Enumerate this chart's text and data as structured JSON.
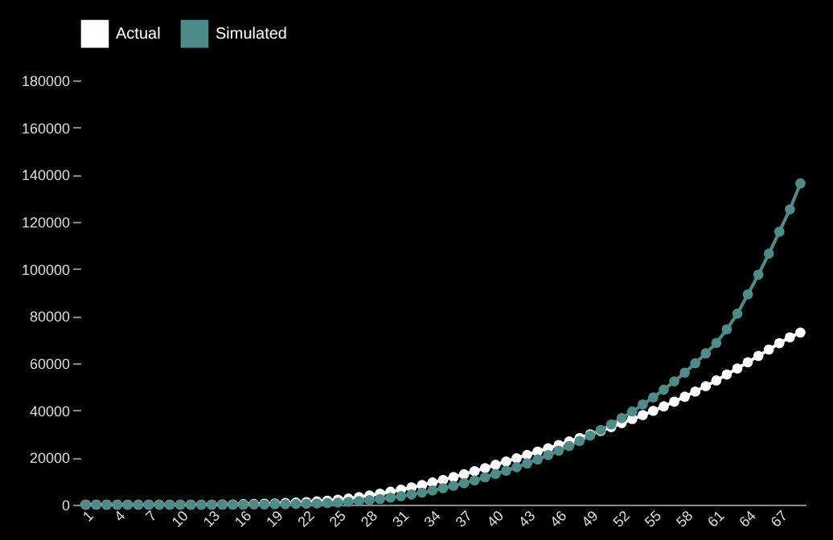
{
  "chart_data": {
    "type": "line",
    "categories": [
      "1",
      null,
      null,
      "4",
      null,
      null,
      "7",
      null,
      null,
      "10",
      null,
      null,
      "13",
      null,
      null,
      "16",
      null,
      null,
      "19",
      null,
      null,
      "22",
      null,
      null,
      "25",
      null,
      null,
      "28",
      null,
      null,
      "31",
      null,
      null,
      "34",
      null,
      null,
      "37",
      null,
      null,
      "40",
      null,
      null,
      "43",
      null,
      null,
      "46",
      null,
      null,
      "49",
      null,
      null,
      "52",
      null,
      null,
      "55",
      null,
      null,
      "58",
      null,
      null,
      "61",
      null,
      null,
      "64",
      null,
      null,
      "67",
      null,
      null
    ],
    "series": [
      {
        "name": "Actual",
        "color": "#ffffff",
        "values": [
          0,
          0,
          0,
          0,
          0,
          0,
          0,
          0,
          0,
          0,
          0,
          0,
          0,
          100,
          100,
          200,
          300,
          400,
          500,
          700,
          900,
          1100,
          1400,
          1700,
          2100,
          2600,
          3200,
          3900,
          4700,
          5500,
          6400,
          7300,
          8300,
          9400,
          10500,
          11700,
          12900,
          14200,
          15500,
          16900,
          18300,
          19700,
          21100,
          22500,
          23900,
          25300,
          26800,
          28300,
          29800,
          31300,
          32900,
          34600,
          36300,
          38000,
          39800,
          41700,
          43700,
          45800,
          48000,
          50300,
          52700,
          55200,
          57800,
          60400,
          63100,
          65800,
          68500,
          71000,
          73000
        ]
      },
      {
        "name": "Simulated",
        "color": "#4e8c89",
        "values": [
          0,
          0,
          0,
          0,
          0,
          0,
          0,
          0,
          0,
          0,
          0,
          0,
          0,
          0,
          0,
          0,
          100,
          100,
          200,
          200,
          300,
          400,
          500,
          700,
          900,
          1200,
          1500,
          1900,
          2400,
          3000,
          3600,
          4300,
          5100,
          6000,
          7000,
          8000,
          9100,
          10300,
          11600,
          13000,
          14400,
          15900,
          17500,
          19200,
          21000,
          22900,
          24900,
          27000,
          29300,
          31700,
          34000,
          36700,
          39500,
          42500,
          45500,
          48800,
          52300,
          56000,
          60000,
          64200,
          68600,
          74400,
          81000,
          89200,
          97600,
          106500,
          115800,
          125300,
          136300
        ]
      }
    ],
    "ylim": [
      0,
      180000
    ],
    "yticks": [
      0,
      20000,
      40000,
      60000,
      80000,
      100000,
      120000,
      140000,
      160000,
      180000
    ],
    "grid": false,
    "legend": "top",
    "marker": "circle",
    "line_style": "solid"
  }
}
